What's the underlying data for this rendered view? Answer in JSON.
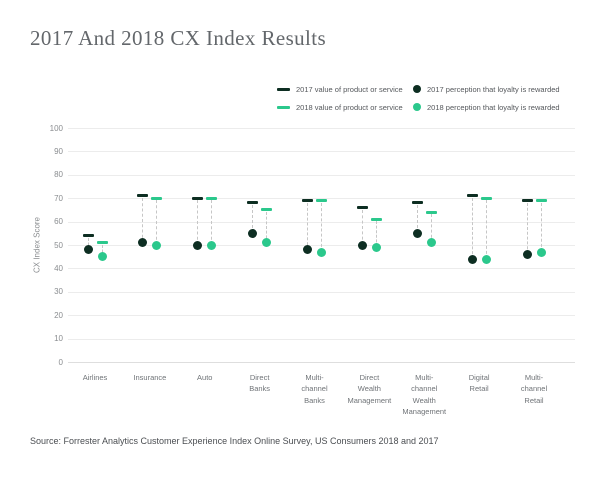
{
  "title": "2017 And 2018 CX Index Results",
  "source": "Source: Forrester Analytics Customer Experience Index Online Survey, US Consumers 2018 and 2017",
  "colors": {
    "dark": "#0d2e22",
    "green": "#2bc88c",
    "gridline": "#ececec",
    "connector": "#c6c6c6",
    "title_text": "#63676b",
    "axis_text": "#8a8d90"
  },
  "legend": [
    {
      "label": "2017 value of product or service",
      "swatch": "dash",
      "color_key": "dark"
    },
    {
      "label": "2017 perception that loyalty is rewarded",
      "swatch": "dot",
      "color_key": "dark"
    },
    {
      "label": "2018 value of product or service",
      "swatch": "dash",
      "color_key": "green"
    },
    {
      "label": "2018 perception that loyalty is rewarded",
      "swatch": "dot",
      "color_key": "green"
    }
  ],
  "chart_data": {
    "type": "dumbbell-dot",
    "title": "2017 And 2018 CX Index Results",
    "ylabel": "CX Index Score",
    "xlabel": "",
    "ylim": [
      0,
      100
    ],
    "yticks": [
      0,
      10,
      20,
      30,
      40,
      50,
      60,
      70,
      80,
      90,
      100
    ],
    "grid": true,
    "legend_position": "top-right",
    "categories": [
      "Airlines",
      "Insurance",
      "Auto",
      "Direct\nBanks",
      "Multi-\nchannel\nBanks",
      "Direct\nWealth\nManagement",
      "Multi-\nchannel\nWealth\nManagement",
      "Digital\nRetail",
      "Multi-\nchannel\nRetail"
    ],
    "series": [
      {
        "id": "2017_value",
        "name": "2017 value of product or service",
        "marker": "dash",
        "color_key": "dark",
        "values": [
          54,
          71,
          70,
          68,
          69,
          66,
          68,
          71,
          69
        ]
      },
      {
        "id": "2018_value",
        "name": "2018 value of product or service",
        "marker": "dash",
        "color_key": "green",
        "values": [
          51,
          70,
          70,
          65,
          69,
          61,
          64,
          70,
          69
        ]
      },
      {
        "id": "2017_loyalty",
        "name": "2017 perception that loyalty is rewarded",
        "marker": "dot",
        "color_key": "dark",
        "values": [
          48,
          51,
          50,
          55,
          48,
          50,
          55,
          44,
          46
        ]
      },
      {
        "id": "2018_loyalty",
        "name": "2018 perception that loyalty is rewarded",
        "marker": "dot",
        "color_key": "green",
        "values": [
          45,
          50,
          50,
          51,
          47,
          49,
          51,
          44,
          47
        ]
      }
    ]
  }
}
